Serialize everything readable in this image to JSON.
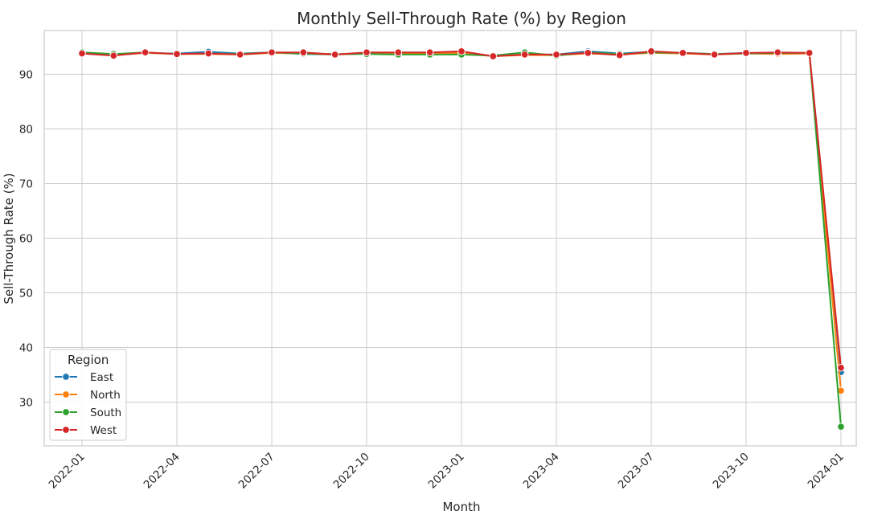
{
  "chart_data": {
    "type": "line",
    "title": "Monthly Sell-Through Rate (%) by Region",
    "xlabel": "Month",
    "ylabel": "Sell-Through Rate (%)",
    "ylim": [
      22,
      98
    ],
    "yticks": [
      30,
      40,
      50,
      60,
      70,
      80,
      90
    ],
    "xticks": [
      "2022-01",
      "2022-04",
      "2022-07",
      "2022-10",
      "2023-01",
      "2023-04",
      "2023-07",
      "2023-10",
      "2024-01"
    ],
    "x": [
      "2022-01",
      "2022-02",
      "2022-03",
      "2022-04",
      "2022-05",
      "2022-06",
      "2022-07",
      "2022-08",
      "2022-09",
      "2022-10",
      "2022-11",
      "2022-12",
      "2023-01",
      "2023-02",
      "2023-03",
      "2023-04",
      "2023-05",
      "2023-06",
      "2023-07",
      "2023-08",
      "2023-09",
      "2023-10",
      "2023-11",
      "2023-12",
      "2024-01"
    ],
    "grid": true,
    "legend": {
      "title": "Region",
      "placement": "lower-left"
    },
    "series": [
      {
        "name": "East",
        "color": "#1f77b4",
        "values": [
          93.9,
          93.5,
          93.9,
          93.8,
          94.1,
          93.8,
          94.0,
          93.7,
          93.6,
          93.8,
          93.7,
          93.8,
          94.0,
          93.3,
          93.6,
          93.6,
          94.2,
          93.8,
          94.1,
          93.9,
          93.7,
          93.9,
          93.8,
          93.9,
          35.5
        ]
      },
      {
        "name": "North",
        "color": "#ff7f0e",
        "values": [
          93.8,
          93.5,
          93.9,
          93.7,
          93.7,
          93.6,
          93.9,
          93.8,
          93.6,
          93.8,
          93.8,
          93.8,
          93.9,
          93.3,
          93.5,
          93.5,
          93.8,
          93.6,
          93.9,
          93.8,
          93.6,
          93.8,
          93.7,
          93.8,
          32.1
        ]
      },
      {
        "name": "South",
        "color": "#2ca02c",
        "values": [
          94.0,
          93.7,
          94.0,
          93.7,
          93.8,
          93.7,
          94.0,
          93.8,
          93.7,
          93.7,
          93.6,
          93.6,
          93.6,
          93.4,
          94.0,
          93.4,
          94.0,
          93.7,
          94.0,
          93.9,
          93.7,
          93.8,
          93.9,
          93.9,
          25.5
        ]
      },
      {
        "name": "West",
        "color": "#d62728",
        "values": [
          93.8,
          93.4,
          94.0,
          93.7,
          93.8,
          93.6,
          94.0,
          94.0,
          93.6,
          94.0,
          94.0,
          94.0,
          94.2,
          93.3,
          93.6,
          93.6,
          93.9,
          93.5,
          94.2,
          93.9,
          93.6,
          93.9,
          94.0,
          93.9,
          36.3
        ]
      }
    ]
  }
}
